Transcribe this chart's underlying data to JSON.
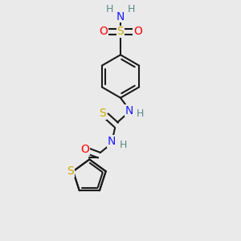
{
  "bg_color": "#eaeaea",
  "atom_colors": {
    "C": "#1a1a1a",
    "N": "#1a1aff",
    "O": "#ff0000",
    "S": "#ccaa00",
    "H": "#5c8a8a"
  },
  "bond_color": "#1a1a1a",
  "bond_width": 1.5
}
